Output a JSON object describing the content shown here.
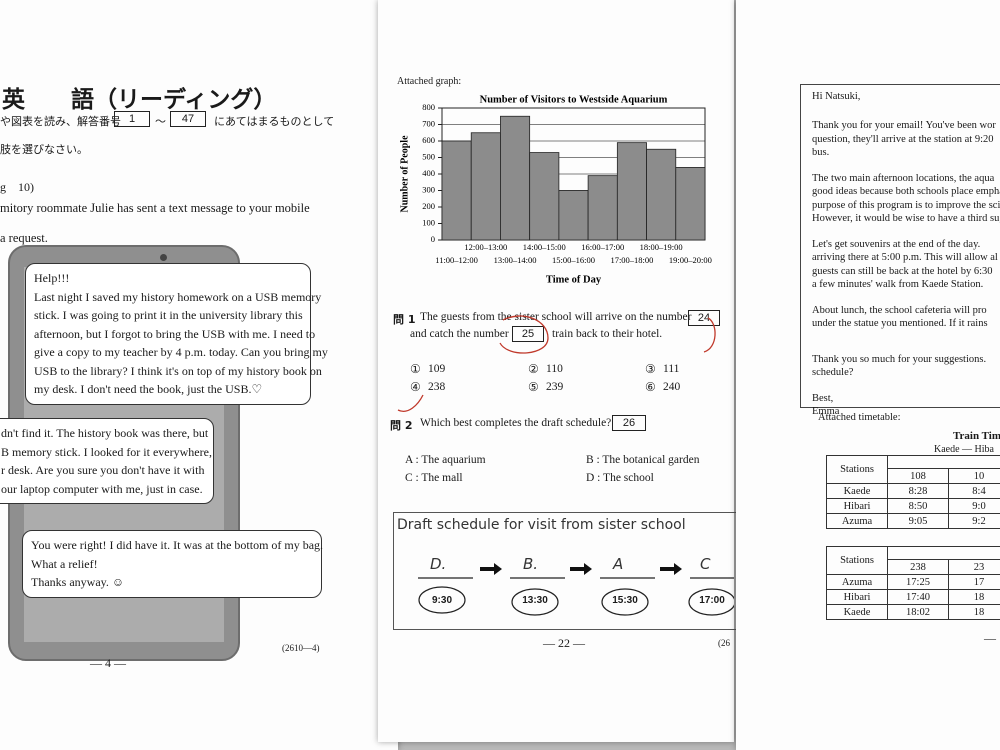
{
  "left": {
    "title": "英　　語（リーディング）",
    "instr_a": "や図表を読み、解答番号",
    "box_from": "1",
    "tilde": "～",
    "box_to": "47",
    "instr_b": "にあてはまるものとして",
    "instr_c": "肢を選びなさい。",
    "section": "g　10)",
    "intro": [
      "mitory roommate Julie has sent a text message to your mobile",
      "a request."
    ],
    "bubble1": [
      "Help!!!",
      "Last night I saved my history homework on a USB memory",
      "stick.  I was going to print it in the university library this",
      "afternoon, but I forgot to bring the USB with me.  I need to",
      "give a copy to my teacher by 4 p.m. today.  Can you bring my",
      "USB to the library?  I think it's on top of my history book on",
      "my desk.  I don't need the book, just the USB.♡"
    ],
    "bubble2": [
      "dn't find it.  The history book was there, but",
      "B memory stick.  I looked for it everywhere,",
      "r desk.  Are you sure you don't have it with",
      "our laptop computer with me, just in case."
    ],
    "bubble3": [
      "You were right!  I did have it.  It was at the bottom of my bag.",
      "What a relief!",
      "Thanks anyway. ☺"
    ],
    "page_no": "— 4 —",
    "code": "(2610—4)"
  },
  "middle": {
    "attached": "Attached graph:",
    "q1_no": "問 1",
    "q1_a": "The guests from the sister school will arrive on the number",
    "q1_box1": "24",
    "q1_b": "and catch the number",
    "q1_box2": "25",
    "q1_c": "train back to their hotel.",
    "q1_options": [
      [
        "①",
        "109"
      ],
      [
        "②",
        "110"
      ],
      [
        "③",
        "111"
      ],
      [
        "④",
        "238"
      ],
      [
        "⑤",
        "239"
      ],
      [
        "⑥",
        "240"
      ]
    ],
    "q2_no": "問 2",
    "q2_text": "Which best completes the draft schedule?",
    "q2_box": "26",
    "q2_options": [
      "A : The aquarium",
      "B : The botanical garden",
      "C : The mall",
      "D : The school"
    ],
    "draft_title": "Draft schedule for visit from sister school",
    "draft_letters": [
      "D.",
      "B.",
      "A",
      "C"
    ],
    "draft_times": [
      "9:30",
      "13:30",
      "15:30",
      "17:00"
    ],
    "page_no": "— 22 —",
    "code": "(26"
  },
  "chart_data": {
    "type": "bar",
    "title": "Number of Visitors to Westside Aquarium",
    "y_label": "Number of People",
    "x_label": "Time of Day",
    "categories": [
      "11:00–12:00",
      "12:00–13:00",
      "13:00–14:00",
      "14:00–15:00",
      "15:00–16:00",
      "16:00–17:00",
      "17:00–18:00",
      "18:00–19:00",
      "19:00–20:00"
    ],
    "values": [
      600,
      650,
      750,
      530,
      300,
      390,
      590,
      550,
      440
    ],
    "color": "#8c8c8c",
    "ylim": [
      0,
      800
    ],
    "yticks": [
      0,
      100,
      200,
      300,
      400,
      500,
      600,
      700,
      800
    ],
    "grid": true
  },
  "right": {
    "greeting": "Hi Natsuki,",
    "paragraphs": [
      [
        "Thank you for your email!  You've been wor",
        "question, they'll arrive at the station at 9:20",
        "bus."
      ],
      [
        "The two main afternoon locations, the aqua",
        "good ideas because both schools place empha",
        "purpose of this program is to improve the sci",
        "However, it would be wise to have a third sug"
      ],
      [
        "Let's get souvenirs at the end of the day.",
        "arriving there at 5:00 p.m. This will allow al",
        "guests can still be back at the hotel by 6:30",
        "a few minutes' walk from Kaede Station."
      ],
      [
        "About lunch, the school cafeteria will pro",
        "under the statue you mentioned.  If it rains"
      ],
      [
        "Thank you so much for your suggestions.",
        "schedule?"
      ],
      [
        "Best,",
        "Emma"
      ]
    ],
    "attached": "Attached timetable:",
    "tt_title": "Train Tim",
    "tt_sub": "Kaede — Hiba",
    "table1": {
      "header": [
        "Stations",
        "108",
        "10"
      ],
      "rows": [
        [
          "Kaede",
          "8:28",
          "8:4"
        ],
        [
          "Hibari",
          "8:50",
          "9:0"
        ],
        [
          "Azuma",
          "9:05",
          "9:2"
        ]
      ]
    },
    "table2": {
      "header": [
        "Stations",
        "238",
        "23"
      ],
      "rows": [
        [
          "Azuma",
          "17:25",
          "17"
        ],
        [
          "Hibari",
          "17:40",
          "18"
        ],
        [
          "Kaede",
          "18:02",
          "18"
        ]
      ]
    },
    "page_no": "— "
  }
}
